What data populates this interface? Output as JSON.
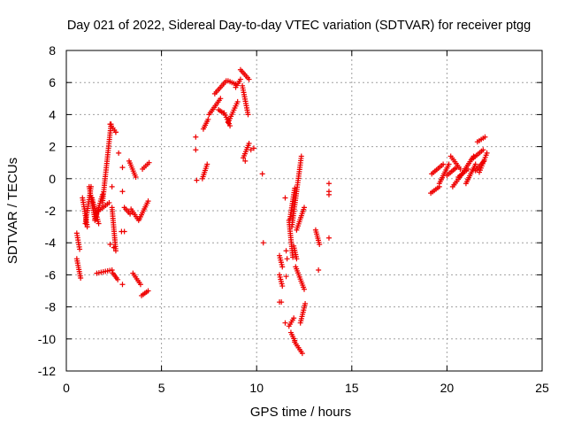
{
  "chart_data": {
    "type": "scatter",
    "title": "Day 021 of 2022, Sidereal Day-to-day VTEC variation (SDTVAR) for receiver ptgg",
    "xlabel": "GPS time / hours",
    "ylabel": "SDTVAR / TECUs",
    "xlim": [
      0,
      25
    ],
    "ylim": [
      -12,
      8
    ],
    "xticks": [
      0,
      5,
      10,
      15,
      20,
      25
    ],
    "yticks": [
      -12,
      -10,
      -8,
      -6,
      -4,
      -2,
      0,
      2,
      4,
      6,
      8
    ],
    "grid": true,
    "marker": "plus",
    "color": "#ee0000",
    "tracks": [
      {
        "x": [
          0.55,
          0.7
        ],
        "y": [
          -3.4,
          -4.4
        ]
      },
      {
        "x": [
          0.55,
          0.75
        ],
        "y": [
          -5.0,
          -6.2
        ]
      },
      {
        "x": [
          0.85,
          1.1
        ],
        "y": [
          -1.2,
          -3.0
        ]
      },
      {
        "x": [
          1.0,
          1.3
        ],
        "y": [
          -2.8,
          -0.5
        ]
      },
      {
        "x": [
          1.2,
          1.5
        ],
        "y": [
          -0.5,
          -2.5
        ]
      },
      {
        "x": [
          1.35,
          1.7
        ],
        "y": [
          -1.2,
          -2.8
        ]
      },
      {
        "x": [
          1.5,
          1.9
        ],
        "y": [
          -2.6,
          -1.0
        ]
      },
      {
        "x": [
          1.7,
          2.25
        ],
        "y": [
          -2.0,
          -1.5
        ]
      },
      {
        "x": [
          1.9,
          2.35
        ],
        "y": [
          -1.5,
          3.4
        ]
      },
      {
        "x": [
          2.3,
          2.6
        ],
        "y": [
          3.4,
          2.9
        ]
      },
      {
        "x": [
          1.6,
          2.4
        ],
        "y": [
          -5.9,
          -5.7
        ]
      },
      {
        "x": [
          2.45,
          2.7
        ],
        "y": [
          -5.9,
          -6.3
        ]
      },
      {
        "x": [
          2.4,
          2.6
        ],
        "y": [
          -1.8,
          -4.5
        ]
      },
      {
        "x": [
          3.05,
          3.35
        ],
        "y": [
          -1.8,
          -2.2
        ]
      },
      {
        "x": [
          3.3,
          3.65
        ],
        "y": [
          1.1,
          0.1
        ]
      },
      {
        "x": [
          3.4,
          3.8
        ],
        "y": [
          -1.9,
          -2.6
        ]
      },
      {
        "x": [
          3.5,
          3.9
        ],
        "y": [
          -5.9,
          -6.6
        ]
      },
      {
        "x": [
          3.85,
          4.3
        ],
        "y": [
          -2.5,
          -1.4
        ]
      },
      {
        "x": [
          3.95,
          4.3
        ],
        "y": [
          -7.3,
          -7.0
        ]
      },
      {
        "x": [
          4.0,
          4.35
        ],
        "y": [
          0.6,
          1.0
        ]
      },
      {
        "x": [
          7.15,
          7.4
        ],
        "y": [
          0.0,
          0.9
        ]
      },
      {
        "x": [
          7.2,
          7.45
        ],
        "y": [
          3.1,
          3.7
        ]
      },
      {
        "x": [
          7.5,
          8.1
        ],
        "y": [
          4.0,
          5.0
        ]
      },
      {
        "x": [
          8.0,
          8.25
        ],
        "y": [
          4.3,
          4.1
        ]
      },
      {
        "x": [
          7.8,
          8.4
        ],
        "y": [
          5.3,
          6.1
        ]
      },
      {
        "x": [
          8.3,
          8.6
        ],
        "y": [
          4.1,
          3.3
        ]
      },
      {
        "x": [
          8.5,
          9.0
        ],
        "y": [
          3.5,
          4.8
        ]
      },
      {
        "x": [
          8.5,
          8.9
        ],
        "y": [
          6.1,
          5.9
        ]
      },
      {
        "x": [
          8.9,
          9.15
        ],
        "y": [
          5.7,
          6.2
        ]
      },
      {
        "x": [
          9.15,
          9.6
        ],
        "y": [
          6.8,
          6.2
        ]
      },
      {
        "x": [
          9.25,
          9.55
        ],
        "y": [
          5.8,
          4.0
        ]
      },
      {
        "x": [
          9.3,
          9.6
        ],
        "y": [
          1.3,
          2.2
        ]
      },
      {
        "x": [
          11.2,
          11.35
        ],
        "y": [
          -4.8,
          -5.5
        ]
      },
      {
        "x": [
          11.2,
          11.35
        ],
        "y": [
          -6.0,
          -6.7
        ]
      },
      {
        "x": [
          11.7,
          11.9
        ],
        "y": [
          -2.6,
          -4.9
        ]
      },
      {
        "x": [
          11.7,
          11.95
        ],
        "y": [
          -9.2,
          -8.7
        ]
      },
      {
        "x": [
          11.75,
          12.0
        ],
        "y": [
          -2.5,
          -0.6
        ]
      },
      {
        "x": [
          11.8,
          12.0
        ],
        "y": [
          -9.6,
          -10.1
        ]
      },
      {
        "x": [
          11.85,
          12.35
        ],
        "y": [
          -3.0,
          1.4
        ]
      },
      {
        "x": [
          11.95,
          12.1
        ],
        "y": [
          -4.2,
          -5.0
        ]
      },
      {
        "x": [
          12.0,
          12.4
        ],
        "y": [
          -10.2,
          -10.9
        ]
      },
      {
        "x": [
          12.05,
          12.5
        ],
        "y": [
          -5.5,
          -6.9
        ]
      },
      {
        "x": [
          12.1,
          12.5
        ],
        "y": [
          -3.2,
          -1.8
        ]
      },
      {
        "x": [
          12.3,
          12.55
        ],
        "y": [
          -9.0,
          -7.8
        ]
      },
      {
        "x": [
          13.1,
          13.3
        ],
        "y": [
          -3.2,
          -4.1
        ]
      },
      {
        "x": [
          19.15,
          19.6
        ],
        "y": [
          -0.9,
          -0.5
        ]
      },
      {
        "x": [
          19.2,
          19.8
        ],
        "y": [
          0.3,
          0.9
        ]
      },
      {
        "x": [
          19.6,
          20.1
        ],
        "y": [
          -0.3,
          0.9
        ]
      },
      {
        "x": [
          20.0,
          20.5
        ],
        "y": [
          0.2,
          0.7
        ]
      },
      {
        "x": [
          20.2,
          20.7
        ],
        "y": [
          1.4,
          0.6
        ]
      },
      {
        "x": [
          20.3,
          20.8
        ],
        "y": [
          -0.5,
          0.3
        ]
      },
      {
        "x": [
          20.6,
          21.1
        ],
        "y": [
          0.1,
          0.6
        ]
      },
      {
        "x": [
          20.9,
          21.4
        ],
        "y": [
          0.5,
          1.4
        ]
      },
      {
        "x": [
          21.0,
          21.5
        ],
        "y": [
          -0.3,
          0.9
        ]
      },
      {
        "x": [
          21.3,
          21.9
        ],
        "y": [
          1.2,
          1.8
        ]
      },
      {
        "x": [
          21.5,
          21.95
        ],
        "y": [
          0.5,
          1.1
        ]
      },
      {
        "x": [
          21.6,
          22.0
        ],
        "y": [
          2.3,
          2.6
        ]
      },
      {
        "x": [
          21.7,
          22.1
        ],
        "y": [
          0.4,
          1.6
        ]
      }
    ],
    "points": [
      [
        2.3,
        -4.1
      ],
      [
        2.5,
        -4.3
      ],
      [
        2.4,
        -0.5
      ],
      [
        2.6,
        2.9
      ],
      [
        2.75,
        1.6
      ],
      [
        2.95,
        0.7
      ],
      [
        2.95,
        -0.8
      ],
      [
        2.9,
        -3.3
      ],
      [
        3.05,
        -3.3
      ],
      [
        2.95,
        -6.6
      ],
      [
        6.8,
        2.6
      ],
      [
        6.8,
        1.8
      ],
      [
        6.85,
        -0.1
      ],
      [
        9.7,
        1.8
      ],
      [
        9.85,
        1.9
      ],
      [
        9.4,
        1.1
      ],
      [
        10.3,
        0.3
      ],
      [
        10.35,
        -4.0
      ],
      [
        11.5,
        -1.2
      ],
      [
        11.55,
        -4.5
      ],
      [
        11.2,
        -7.7
      ],
      [
        11.3,
        -7.7
      ],
      [
        11.55,
        -6.1
      ],
      [
        11.5,
        -9.0
      ],
      [
        11.6,
        -5.0
      ],
      [
        13.25,
        -5.7
      ],
      [
        13.8,
        -0.3
      ],
      [
        13.8,
        -0.8
      ],
      [
        13.8,
        -1.0
      ],
      [
        13.8,
        -3.7
      ]
    ]
  }
}
